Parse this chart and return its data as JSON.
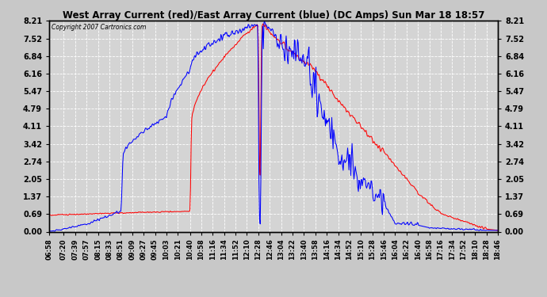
{
  "title": "West Array Current (red)/East Array Current (blue) (DC Amps) Sun Mar 18 18:57",
  "copyright": "Copyright 2007 Cartronics.com",
  "yticks": [
    0.0,
    0.69,
    1.37,
    2.05,
    2.74,
    3.42,
    4.11,
    4.79,
    5.47,
    6.16,
    6.84,
    7.52,
    8.21
  ],
  "ylim": [
    0.0,
    8.21
  ],
  "bg_color": "#c8c8c8",
  "plot_bg": "#d4d4d4",
  "grid_color": "#ffffff",
  "red_color": "#ff0000",
  "blue_color": "#0000ff",
  "xtick_labels": [
    "06:58",
    "07:20",
    "07:39",
    "07:57",
    "08:15",
    "08:33",
    "08:51",
    "09:09",
    "09:27",
    "09:45",
    "10:03",
    "10:21",
    "10:40",
    "10:58",
    "11:16",
    "11:34",
    "11:52",
    "12:10",
    "12:28",
    "12:46",
    "13:04",
    "13:22",
    "13:40",
    "13:58",
    "14:16",
    "14:34",
    "14:52",
    "15:10",
    "15:28",
    "15:46",
    "16:04",
    "16:22",
    "16:40",
    "16:58",
    "17:16",
    "17:34",
    "17:52",
    "18:10",
    "18:28",
    "18:46"
  ]
}
